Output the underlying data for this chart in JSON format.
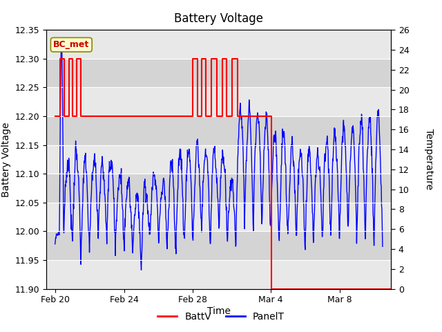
{
  "title": "Battery Voltage",
  "xlabel": "Time",
  "ylabel_left": "Battery Voltage",
  "ylabel_right": "Temperature",
  "ylim_left": [
    11.9,
    12.35
  ],
  "ylim_right": [
    0,
    26
  ],
  "yticks_left": [
    11.9,
    11.95,
    12.0,
    12.05,
    12.1,
    12.15,
    12.2,
    12.25,
    12.3,
    12.35
  ],
  "yticks_right": [
    0,
    2,
    4,
    6,
    8,
    10,
    12,
    14,
    16,
    18,
    20,
    22,
    24,
    26
  ],
  "background_color": "#ffffff",
  "band_dark": "#d4d4d4",
  "band_light": "#e8e8e8",
  "annotation_text": "BC_met",
  "annotation_color": "#cc0000",
  "annotation_bg": "#ffffcc",
  "annotation_border": "#888800",
  "batt_color": "#ff0000",
  "panel_color": "#0000ff",
  "xtick_labels": [
    "Feb 20",
    "Feb 24",
    "Feb 28",
    "Mar 4",
    "Mar 8"
  ],
  "xtick_positions": [
    0,
    4,
    8,
    12.5,
    16.5
  ],
  "xlim": [
    -0.5,
    19.5
  ],
  "batt_x": [
    0.0,
    0.3,
    0.3,
    0.55,
    0.55,
    0.8,
    0.8,
    1.0,
    1.0,
    1.25,
    1.25,
    1.5,
    1.5,
    2.2,
    8.0,
    8.0,
    8.25,
    8.25,
    8.5,
    8.5,
    8.75,
    8.75,
    9.05,
    9.05,
    9.4,
    9.4,
    9.7,
    9.7,
    9.95,
    9.95,
    10.25,
    10.25,
    10.6,
    10.6,
    12.55,
    12.55,
    19.5
  ],
  "batt_y": [
    12.2,
    12.2,
    12.3,
    12.3,
    12.2,
    12.2,
    12.3,
    12.3,
    12.2,
    12.2,
    12.3,
    12.3,
    12.2,
    12.2,
    12.2,
    12.3,
    12.3,
    12.2,
    12.2,
    12.3,
    12.3,
    12.2,
    12.2,
    12.3,
    12.3,
    12.2,
    12.2,
    12.3,
    12.3,
    12.2,
    12.2,
    12.3,
    12.3,
    12.2,
    12.2,
    11.9,
    11.9
  ]
}
